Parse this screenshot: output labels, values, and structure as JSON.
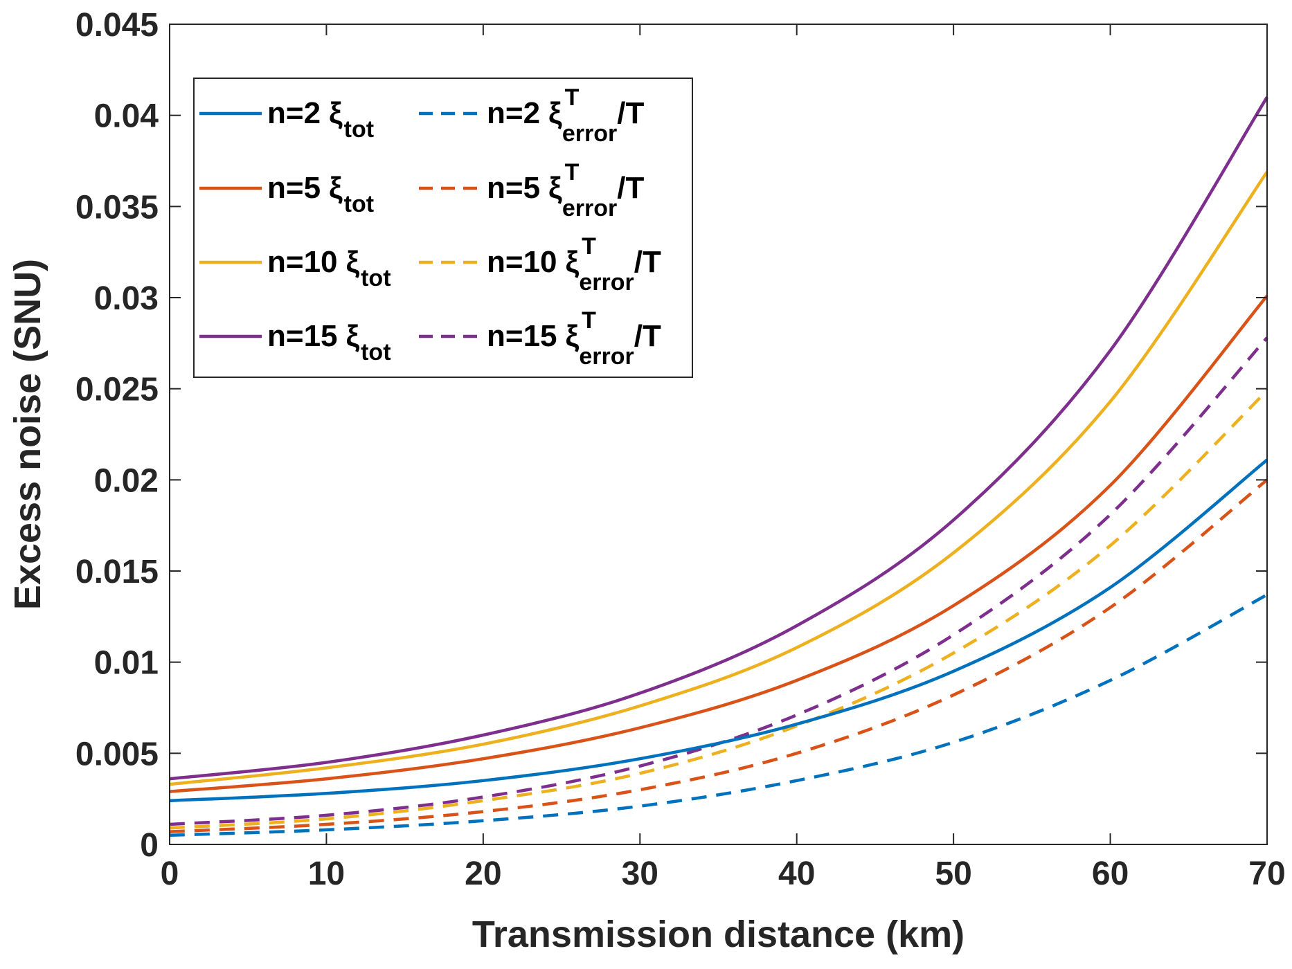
{
  "chart_data": {
    "type": "line",
    "title": "",
    "xlabel": "Transmission distance (km)",
    "ylabel": "Excess noise (SNU)",
    "xlim": [
      0,
      70
    ],
    "ylim": [
      0,
      0.045
    ],
    "xticks": [
      "0",
      "10",
      "20",
      "30",
      "40",
      "50",
      "60",
      "70"
    ],
    "yticks": [
      "0",
      "0.005",
      "0.01",
      "0.015",
      "0.02",
      "0.025",
      "0.03",
      "0.035",
      "0.04",
      "0.045"
    ],
    "grid": false,
    "legend_position": "top-left",
    "x": [
      0,
      10,
      20,
      30,
      40,
      50,
      60,
      70
    ],
    "series": [
      {
        "name": "n=2 ξtot",
        "n": "n=2",
        "sym": "ξ",
        "sub": "tot",
        "sup": "",
        "tail": "",
        "color": "#0072BD",
        "dash": false,
        "values": [
          0.0024,
          0.0028,
          0.0035,
          0.0047,
          0.0066,
          0.0095,
          0.0141,
          0.0211
        ]
      },
      {
        "name": "n=5 ξtot",
        "n": "n=5",
        "sym": "ξ",
        "sub": "tot",
        "sup": "",
        "tail": "",
        "color": "#D95319",
        "dash": false,
        "values": [
          0.0029,
          0.0036,
          0.0047,
          0.0064,
          0.009,
          0.0131,
          0.0197,
          0.0301
        ]
      },
      {
        "name": "n=10 ξtot",
        "n": "n=10",
        "sym": "ξ",
        "sub": "tot",
        "sup": "",
        "tail": "",
        "color": "#EDB120",
        "dash": false,
        "values": [
          0.0033,
          0.0042,
          0.0055,
          0.0076,
          0.0108,
          0.016,
          0.0243,
          0.0369
        ]
      },
      {
        "name": "n=15 ξtot",
        "n": "n=15",
        "sym": "ξ",
        "sub": "tot",
        "sup": "",
        "tail": "",
        "color": "#7E2F8E",
        "dash": false,
        "values": [
          0.0036,
          0.0045,
          0.006,
          0.0083,
          0.012,
          0.0178,
          0.0271,
          0.041
        ]
      },
      {
        "name": "n=2 ξTerror/T",
        "n": "n=2",
        "sym": "ξ",
        "sub": "error",
        "sup": "T",
        "tail": "/T",
        "color": "#0072BD",
        "dash": true,
        "values": [
          0.0005,
          0.0008,
          0.0013,
          0.0021,
          0.0035,
          0.0056,
          0.009,
          0.0137
        ]
      },
      {
        "name": "n=5 ξTerror/T",
        "n": "n=5",
        "sym": "ξ",
        "sub": "error",
        "sup": "T",
        "tail": "/T",
        "color": "#D95319",
        "dash": true,
        "values": [
          0.0007,
          0.0011,
          0.0018,
          0.003,
          0.005,
          0.0082,
          0.013,
          0.02
        ]
      },
      {
        "name": "n=10 ξTerror/T",
        "n": "n=10",
        "sym": "ξ",
        "sub": "error",
        "sup": "T",
        "tail": "/T",
        "color": "#EDB120",
        "dash": true,
        "values": [
          0.0009,
          0.0014,
          0.0024,
          0.0039,
          0.0065,
          0.0105,
          0.0164,
          0.0249
        ]
      },
      {
        "name": "n=15 ξTerror/T",
        "n": "n=15",
        "sym": "ξ",
        "sub": "error",
        "sup": "T",
        "tail": "/T",
        "color": "#7E2F8E",
        "dash": true,
        "values": [
          0.0011,
          0.0016,
          0.0026,
          0.0043,
          0.0071,
          0.0115,
          0.0181,
          0.0278
        ]
      }
    ]
  }
}
